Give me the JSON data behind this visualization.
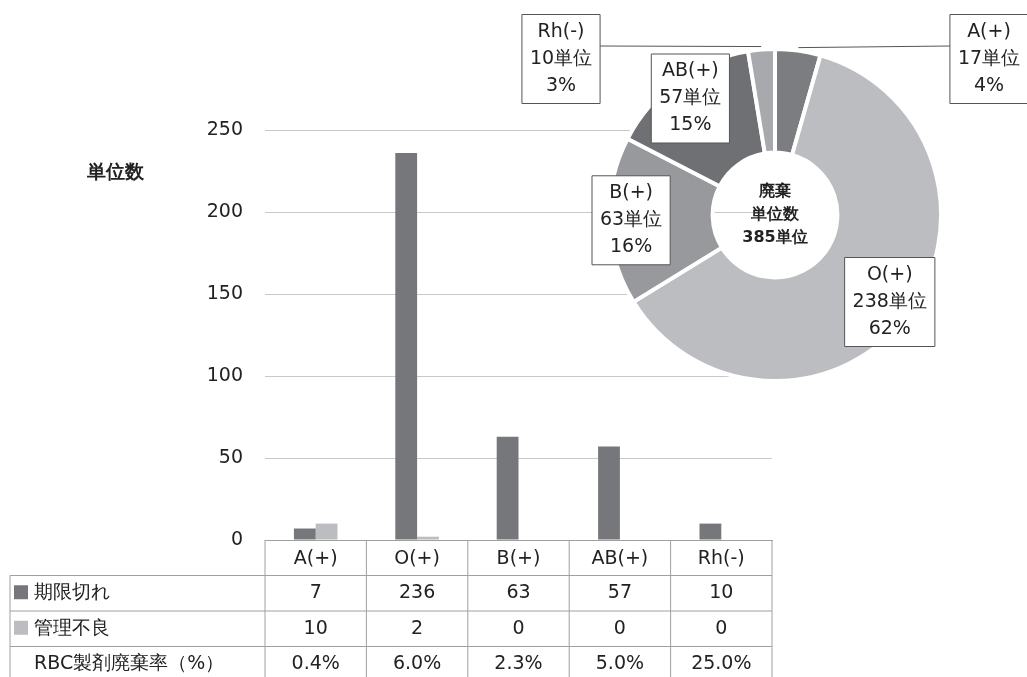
{
  "chart_data": [
    {
      "type": "bar",
      "ylabel": "単位数",
      "categories": [
        "A(+)",
        "O(+)",
        "B(+)",
        "AB(+)",
        "Rh(-)"
      ],
      "series": [
        {
          "name": "期限切れ",
          "color": "#76777b",
          "values": [
            7,
            236,
            63,
            57,
            10
          ]
        },
        {
          "name": "管理不良",
          "color": "#bcbdc0",
          "values": [
            10,
            2,
            0,
            0,
            0
          ]
        }
      ],
      "ylim": [
        0,
        250
      ],
      "yticks": [
        0,
        50,
        100,
        150,
        200,
        250
      ],
      "grid": "y",
      "legend": "bottom",
      "data_labels": true,
      "annotations": [
        "RBC製剤廃棄率（%）",
        "0.4%",
        "6.0%",
        "2.3%",
        "5.0%",
        "25.0%"
      ]
    },
    {
      "type": "donut",
      "title": "廃棄",
      "subtitle": "単位数",
      "annotations": [
        "385単位"
      ],
      "categories": [
        "A(+)",
        "O(+)",
        "B(+)",
        "AB(+)",
        "Rh(-)"
      ],
      "values": [
        17,
        238,
        63,
        57,
        10
      ],
      "colors": [
        "#7c7d80",
        "#bcbdc0",
        "#98999c",
        "#6f7074",
        "#a8a9ac"
      ],
      "value_labels": [
        "17単位\n4%",
        "238単位\n62%",
        "63単位\n16%",
        "57単位\n15%",
        "10単位\n3%"
      ]
    }
  ]
}
